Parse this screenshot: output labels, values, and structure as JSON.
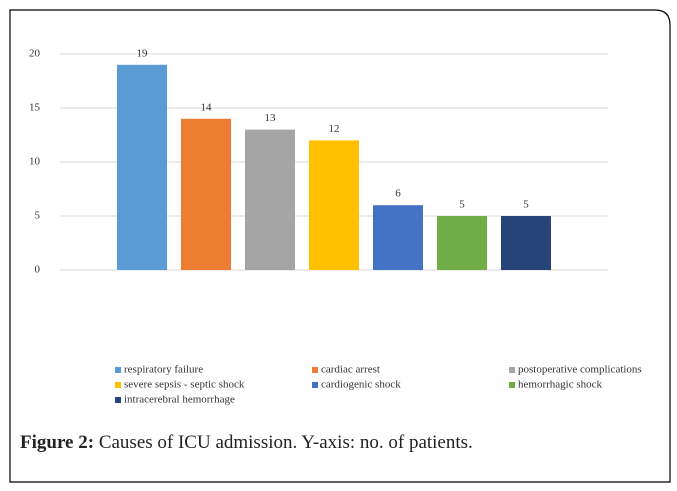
{
  "chart_data": {
    "type": "bar",
    "categories": [
      "respiratory failure",
      "cardiac arrest",
      "postoperative complications",
      "severe sepsis - septic shock",
      "cardiogenic shock",
      "hemorrhagic shock",
      "intracerebral hemorrhage"
    ],
    "values": [
      19,
      14,
      13,
      12,
      6,
      5,
      5
    ],
    "colors": [
      "#5b9bd5",
      "#ed7d31",
      "#a5a5a5",
      "#ffc000",
      "#4472c4",
      "#70ad47",
      "#264478"
    ],
    "ylim": [
      0,
      20
    ],
    "yticks": [
      0,
      5,
      10,
      15,
      20
    ],
    "grid": true,
    "legend": "bottom"
  },
  "caption": {
    "label": "Figure 2:",
    "text": "Causes of ICU admission. Y-axis: no. of patients."
  }
}
